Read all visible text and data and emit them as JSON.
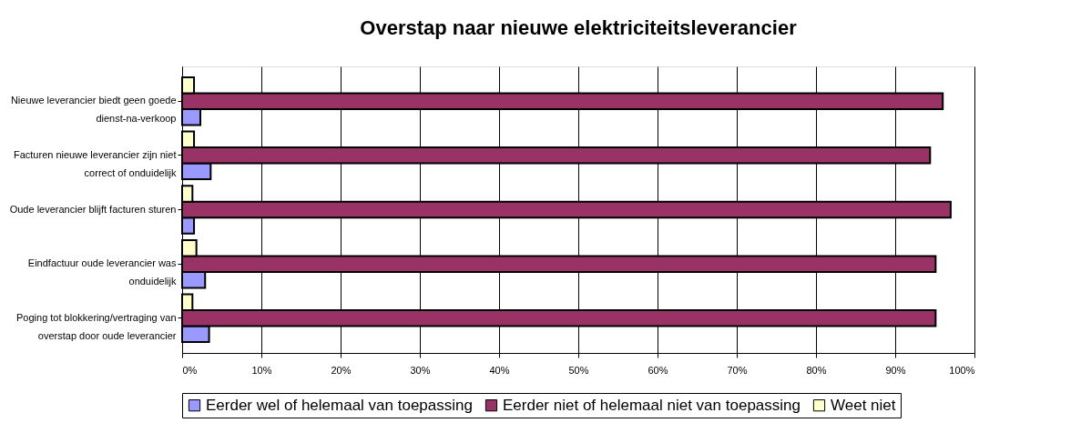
{
  "chart_data": {
    "type": "bar",
    "orientation": "horizontal",
    "title": "Overstap naar nieuwe elektriciteitsleverancier",
    "categories": [
      "Nieuwe leverancier biedt geen goede dienst-na-verkoop",
      "Facturen nieuwe leverancier zijn niet correct of onduidelijk",
      "Oude leverancier blijft facturen sturen",
      "Eindfactuur oude leverancier was onduidelijk",
      "Poging tot blokkering/vertraging van overstap door oude leverancier"
    ],
    "series": [
      {
        "name": "Eerder wel of helemaal van toepassing",
        "color": "#9999ff",
        "values": [
          2.3,
          3.6,
          1.5,
          2.9,
          3.4
        ]
      },
      {
        "name": "Eerder niet of helemaal niet van toepassing",
        "color": "#993366",
        "values": [
          96.0,
          94.4,
          97.0,
          95.1,
          95.1
        ]
      },
      {
        "name": "Weet niet",
        "color": "#ffffcc",
        "values": [
          1.5,
          1.5,
          1.3,
          1.8,
          1.3
        ]
      }
    ],
    "xlim": [
      0,
      100
    ],
    "xticks": [
      {
        "value": 0,
        "label": "0%"
      },
      {
        "value": 10,
        "label": "10%"
      },
      {
        "value": 20,
        "label": "20%"
      },
      {
        "value": 30,
        "label": "30%"
      },
      {
        "value": 40,
        "label": "40%"
      },
      {
        "value": 50,
        "label": "50%"
      },
      {
        "value": 60,
        "label": "60%"
      },
      {
        "value": 70,
        "label": "70%"
      },
      {
        "value": 80,
        "label": "80%"
      },
      {
        "value": 90,
        "label": "90%"
      },
      {
        "value": 100,
        "label": "100%"
      }
    ],
    "grid": "x",
    "legend": "bottom"
  }
}
